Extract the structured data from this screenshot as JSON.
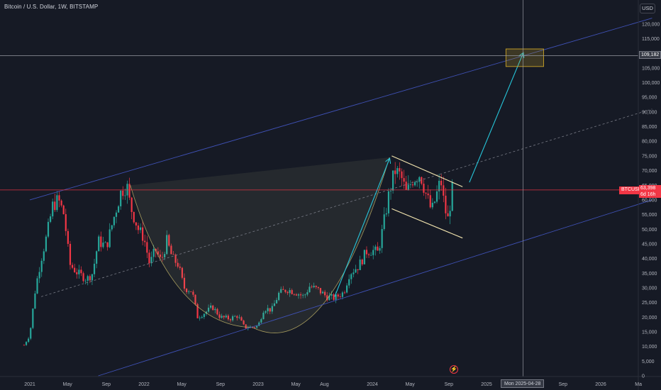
{
  "header": {
    "symbol_title": "Bitcoin / U.S. Dollar, 1W, BITSTAMP",
    "currency": "USD"
  },
  "crosshair": {
    "price_label": "109,182",
    "price": 109182,
    "date_label": "Mon 2025-04-28",
    "date_x": 2025.32
  },
  "current_price": {
    "symbol": "BTCUSD",
    "price_label": "63,398",
    "countdown": "6d 16h",
    "price": 63398
  },
  "colors": {
    "background": "#161a25",
    "up": "#26a69a",
    "down": "#f23645",
    "channel": "#3f51b5",
    "arrow": "#26c6da",
    "flag": "#f5e7b0",
    "target_box": "#c9a227"
  },
  "icons": {
    "flash": "lightning-icon"
  },
  "chart_data": {
    "type": "candlestick",
    "title": "Bitcoin / U.S. Dollar, 1W, BITSTAMP",
    "timeframe": "1W",
    "exchange": "BITSTAMP",
    "y_axis": {
      "position": "right",
      "currency": "USD",
      "scale": "linear",
      "ylim": [
        0,
        125000
      ],
      "ticks": [
        0,
        5000,
        10000,
        15000,
        20000,
        25000,
        30000,
        35000,
        40000,
        45000,
        50000,
        55000,
        60000,
        65000,
        70000,
        75000,
        80000,
        85000,
        90000,
        95000,
        100000,
        105000,
        110000,
        115000,
        120000
      ],
      "tick_labels": [
        "0",
        "5,000",
        "10,000",
        "15,000",
        "20,000",
        "25,000",
        "30,000",
        "35,000",
        "40,000",
        "45,000",
        "50,000",
        "55,000",
        "60,000",
        "65,000",
        "70,000",
        "75,000",
        "80,000",
        "85,000",
        "90,000",
        "95,000",
        "100,000",
        "105,000",
        "110,000",
        "115,000",
        "120,000"
      ]
    },
    "x_axis": {
      "ticks": [
        {
          "label": "2021",
          "x": 2021.0
        },
        {
          "label": "May",
          "x": 2021.33
        },
        {
          "label": "Sep",
          "x": 2021.67
        },
        {
          "label": "2022",
          "x": 2022.0
        },
        {
          "label": "May",
          "x": 2022.33
        },
        {
          "label": "Sep",
          "x": 2022.67
        },
        {
          "label": "2023",
          "x": 2023.0
        },
        {
          "label": "May",
          "x": 2023.33
        },
        {
          "label": "Aug",
          "x": 2023.58
        },
        {
          "label": "2024",
          "x": 2024.0
        },
        {
          "label": "May",
          "x": 2024.33
        },
        {
          "label": "Sep",
          "x": 2024.67
        },
        {
          "label": "2025",
          "x": 2025.0
        },
        {
          "label": "Sep",
          "x": 2025.67
        },
        {
          "label": "2026",
          "x": 2026.0
        },
        {
          "label": "Ma",
          "x": 2026.33
        }
      ]
    },
    "grid": false,
    "price_path": [
      [
        2020.95,
        10500
      ],
      [
        2021.0,
        14000
      ],
      [
        2021.05,
        30000
      ],
      [
        2021.1,
        40000
      ],
      [
        2021.15,
        48000
      ],
      [
        2021.2,
        58000
      ],
      [
        2021.25,
        60000
      ],
      [
        2021.3,
        55000
      ],
      [
        2021.35,
        38000
      ],
      [
        2021.42,
        35000
      ],
      [
        2021.5,
        33000
      ],
      [
        2021.55,
        35000
      ],
      [
        2021.6,
        46000
      ],
      [
        2021.67,
        44000
      ],
      [
        2021.75,
        56000
      ],
      [
        2021.8,
        63000
      ],
      [
        2021.85,
        65000
      ],
      [
        2021.88,
        58000
      ],
      [
        2021.95,
        50000
      ],
      [
        2022.0,
        47000
      ],
      [
        2022.05,
        38000
      ],
      [
        2022.1,
        43000
      ],
      [
        2022.15,
        39000
      ],
      [
        2022.2,
        46000
      ],
      [
        2022.25,
        40000
      ],
      [
        2022.3,
        38000
      ],
      [
        2022.35,
        30000
      ],
      [
        2022.42,
        29000
      ],
      [
        2022.47,
        20000
      ],
      [
        2022.55,
        22000
      ],
      [
        2022.6,
        23500
      ],
      [
        2022.67,
        20000
      ],
      [
        2022.75,
        19500
      ],
      [
        2022.82,
        20500
      ],
      [
        2022.88,
        16500
      ],
      [
        2022.95,
        16600
      ],
      [
        2023.0,
        17000
      ],
      [
        2023.05,
        23000
      ],
      [
        2023.12,
        22500
      ],
      [
        2023.18,
        28000
      ],
      [
        2023.25,
        29500
      ],
      [
        2023.33,
        28500
      ],
      [
        2023.4,
        27000
      ],
      [
        2023.45,
        30500
      ],
      [
        2023.52,
        29500
      ],
      [
        2023.6,
        27000
      ],
      [
        2023.67,
        26500
      ],
      [
        2023.75,
        28500
      ],
      [
        2023.8,
        35000
      ],
      [
        2023.88,
        37500
      ],
      [
        2023.95,
        42500
      ],
      [
        2024.0,
        42800
      ],
      [
        2024.05,
        42000
      ],
      [
        2024.1,
        52000
      ],
      [
        2024.15,
        63000
      ],
      [
        2024.2,
        70000
      ],
      [
        2024.25,
        68000
      ],
      [
        2024.3,
        62000
      ],
      [
        2024.35,
        67000
      ],
      [
        2024.42,
        69000
      ],
      [
        2024.47,
        62000
      ],
      [
        2024.52,
        56000
      ],
      [
        2024.55,
        60000
      ],
      [
        2024.6,
        67000
      ],
      [
        2024.63,
        58000
      ],
      [
        2024.66,
        53000
      ],
      [
        2024.7,
        63398
      ]
    ],
    "drawings": {
      "channel_upper": [
        [
          2021.0,
          60000
        ],
        [
          2026.45,
          122000
        ]
      ],
      "channel_lower": [
        [
          2021.6,
          0
        ],
        [
          2026.45,
          60000
        ]
      ],
      "channel_mid": [
        [
          2021.1,
          27000
        ],
        [
          2026.45,
          91000
        ]
      ],
      "cup_rim_left": [
        2021.88,
        65000
      ],
      "cup_rim_right": [
        2024.15,
        74500
      ],
      "cup_bottom": [
        2022.95,
        16500
      ],
      "flag_upper": [
        [
          2024.17,
          75000
        ],
        [
          2024.79,
          64500
        ]
      ],
      "flag_lower": [
        [
          2024.17,
          57000
        ],
        [
          2024.79,
          47000
        ]
      ],
      "arrow_breakout": [
        [
          2023.67,
          27000
        ],
        [
          2024.15,
          74000
        ]
      ],
      "arrow_target": [
        [
          2024.85,
          66000
        ],
        [
          2025.32,
          110000
        ]
      ],
      "target_zone": {
        "x": [
          2025.17,
          2025.5
        ],
        "y": [
          105500,
          111500
        ]
      },
      "current_price_line": 63398,
      "crosshair": [
        2025.32,
        109182
      ]
    }
  }
}
